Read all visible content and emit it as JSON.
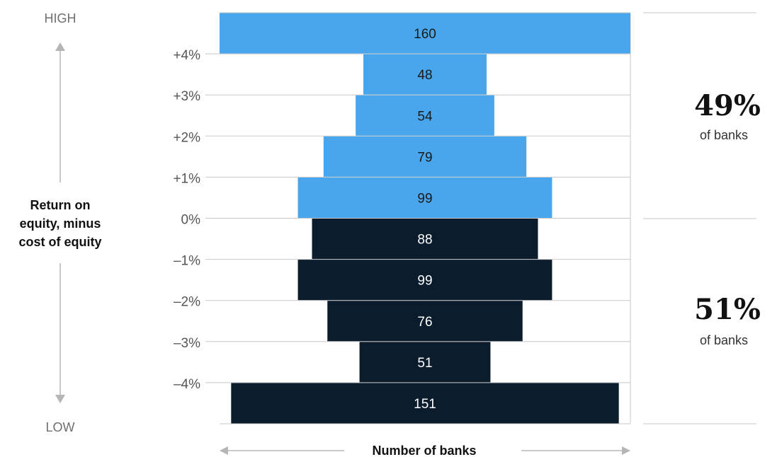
{
  "chart_data": {
    "type": "bar",
    "orientation": "horizontal",
    "categories": [
      "",
      "+4%",
      "+3%",
      "+2%",
      "+1%",
      "0%",
      "–1%",
      "–2%",
      "–3%",
      "–4%"
    ],
    "values": [
      160,
      48,
      54,
      79,
      99,
      88,
      99,
      76,
      51,
      151
    ],
    "data_labels": [
      "160",
      "48",
      "54",
      "79",
      "99",
      "88",
      "99",
      "76",
      "51",
      "151"
    ],
    "ylabel_lines": [
      "Return on",
      "equity, minus",
      "cost of equity"
    ],
    "y_top_label": "HIGH",
    "y_bottom_label": "LOW",
    "xlabel": "Number of banks",
    "colors": {
      "positive": "#49a6ec",
      "negative": "#0b1d2d",
      "positive_text": "#1a1a1a",
      "negative_text": "#ffffff",
      "grid": "#c8c8c8",
      "arrow": "#b5b5b5"
    },
    "summary": [
      {
        "value": "49%",
        "label": "of banks"
      },
      {
        "value": "51%",
        "label": "of banks"
      }
    ]
  }
}
